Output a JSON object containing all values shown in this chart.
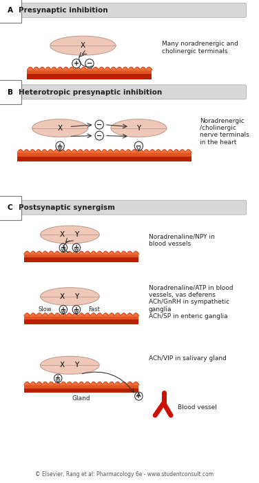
{
  "bg_color": "#ffffff",
  "nerve_fill": "#f0c8b8",
  "nerve_edge": "#c0a090",
  "section_bg": "#d8d8d8",
  "section_border": "#b0b0b0",
  "wavy_dark": "#cc2200",
  "wavy_mid": "#dd4400",
  "wavy_light": "#ee8855",
  "text_color": "#222222",
  "section_A_letter": "A",
  "section_A_text": "Presynaptic inhibition",
  "section_B_letter": "B",
  "section_B_text": "Heterotropic presynaptic inhibition",
  "section_C_letter": "C",
  "section_C_text": "Postsynaptic synergism",
  "label_A": "Many noradrenergic and\ncholinergic terminals",
  "label_B": "Noradrenergic\n/cholinergic\nnerve terminals\nin the heart",
  "label_C1": "Noradrenaline/NPY in\nblood vessels",
  "label_C2": "Noradrenaline/ATP in blood\nvessels, vas deferens\nACh/GnRH in sympathetic\nganglia\nACh/SP in enteric ganglia",
  "label_C3": "ACh/VIP in salivary gland",
  "label_gland": "Gland",
  "label_bv": "Blood vessel",
  "footer": "© Elsevier, Rang et al: Pharmacology 6e - www.studentconsult.com",
  "blood_vessel_color": "#cc1100"
}
